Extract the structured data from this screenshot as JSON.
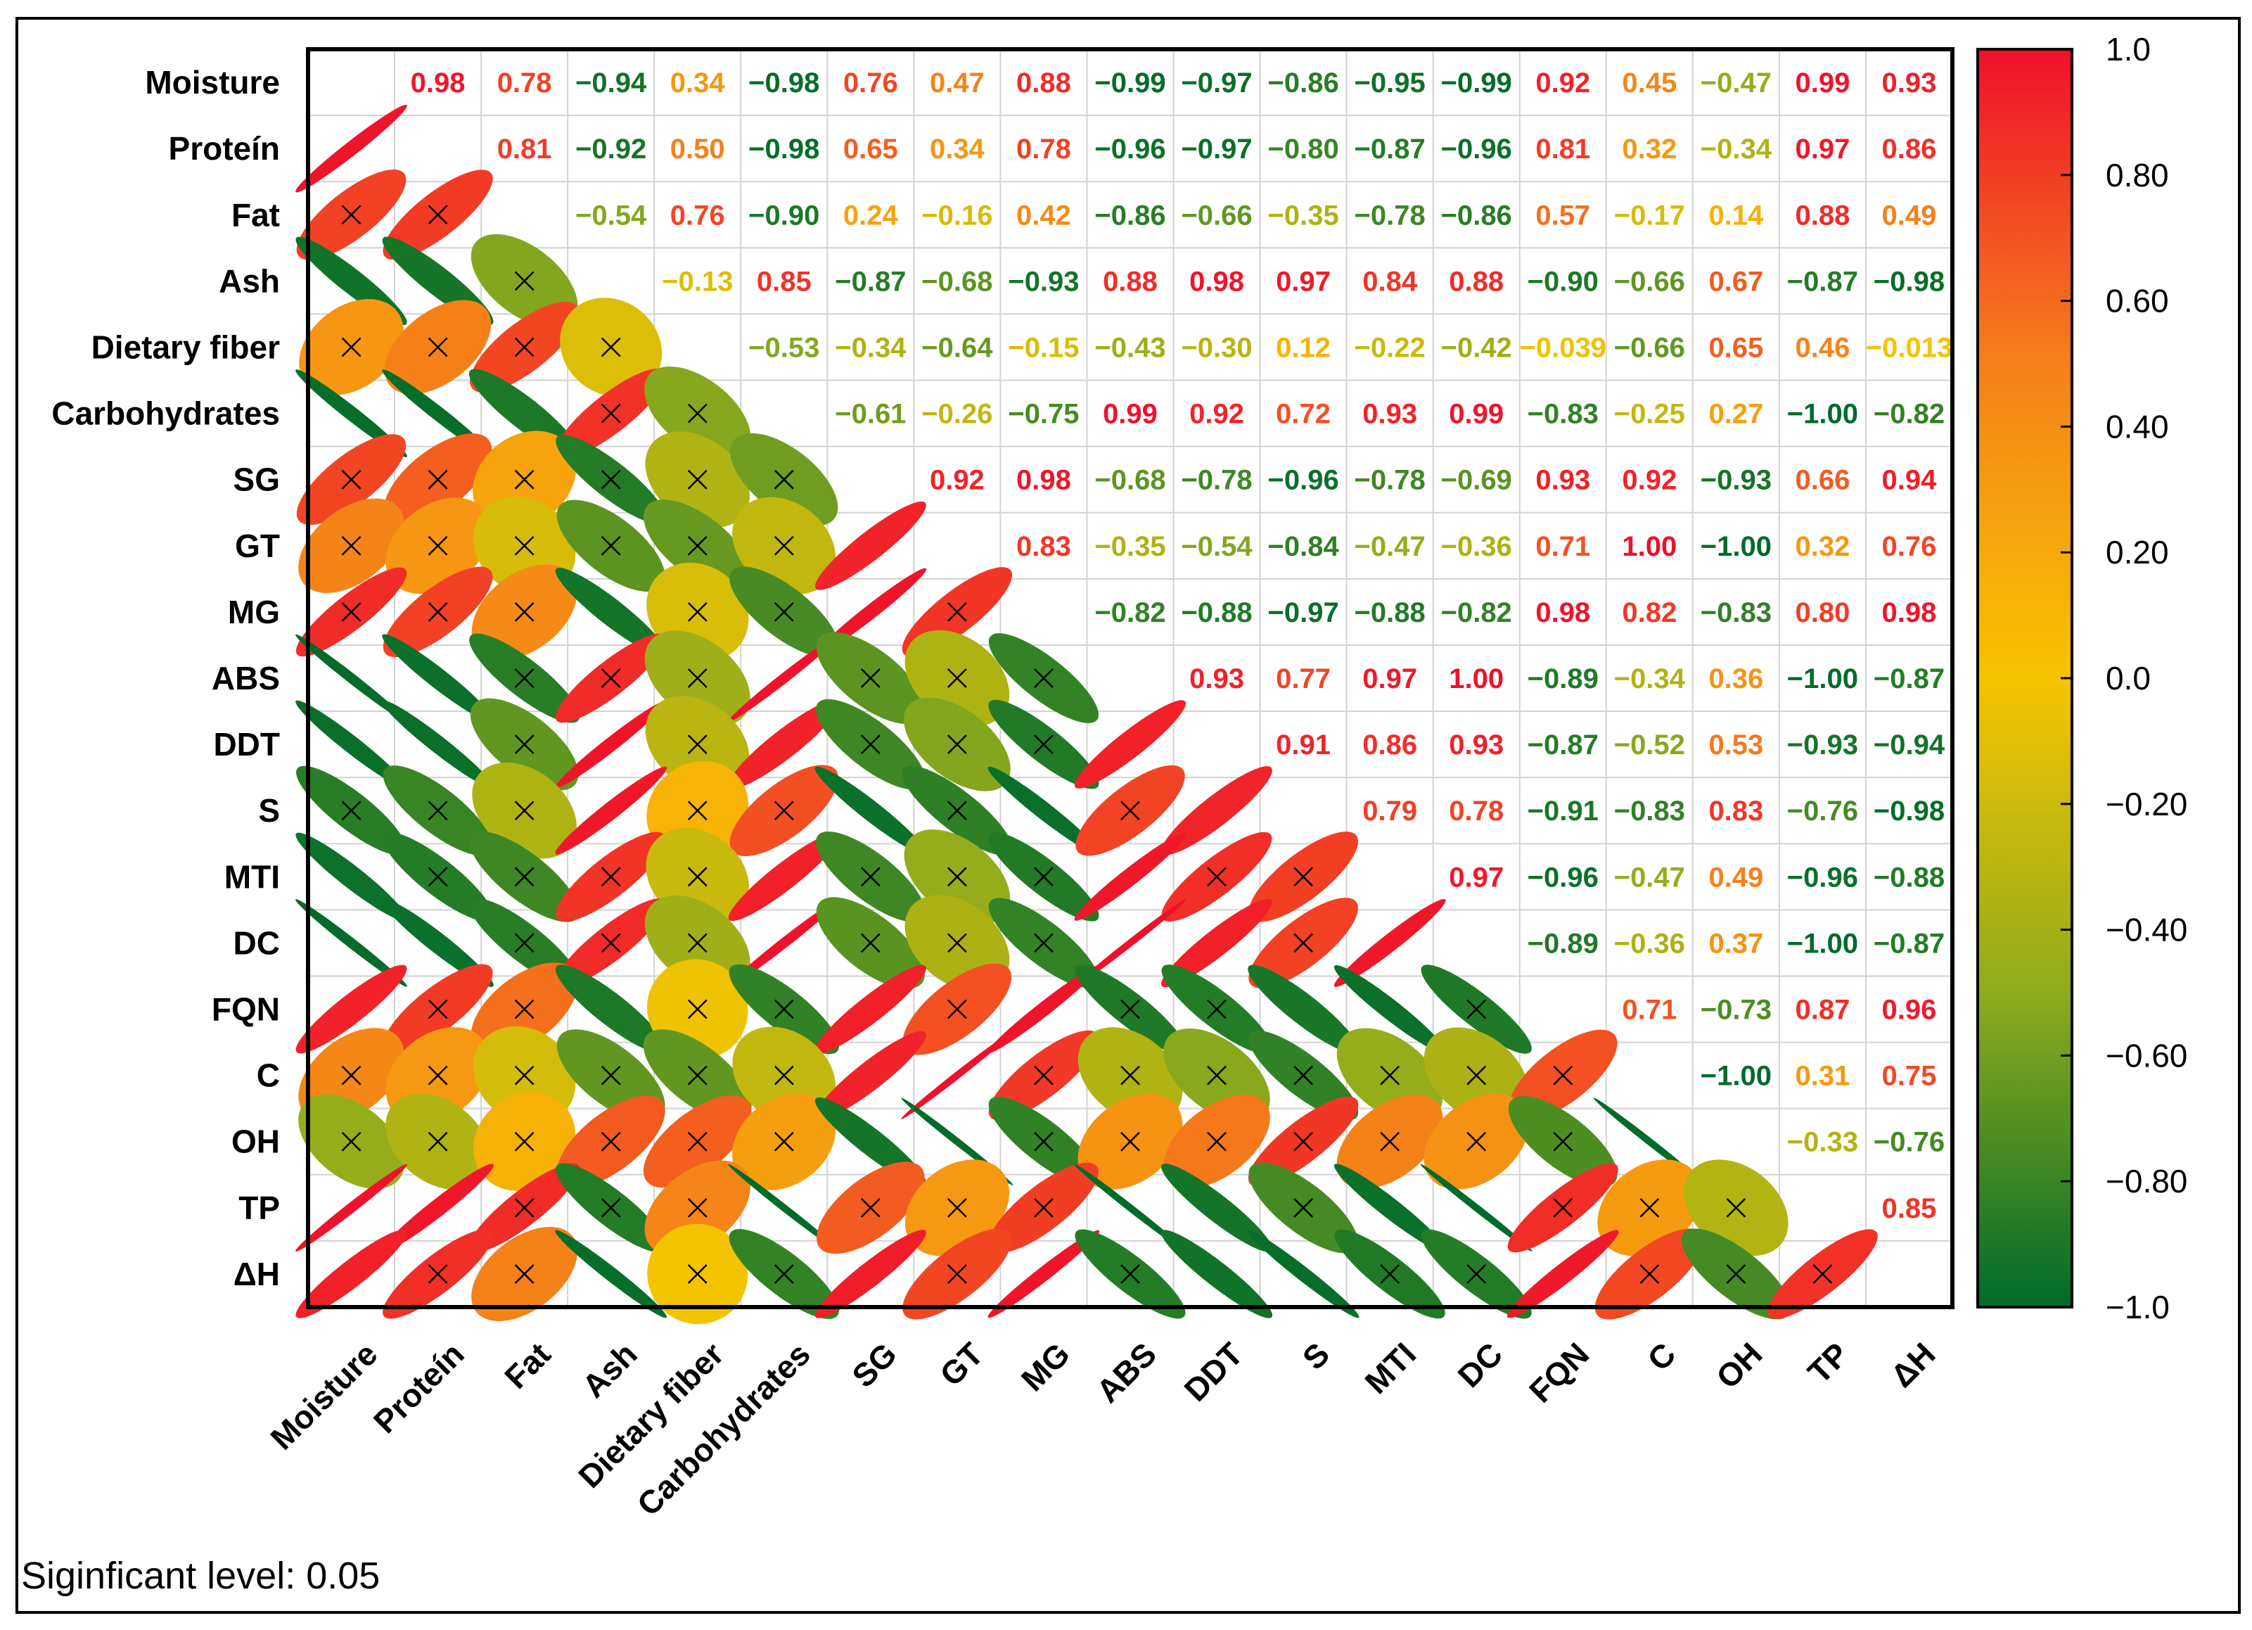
{
  "chart_data": {
    "type": "heatmap",
    "variables": [
      "Moisture",
      "Proteín",
      "Fat",
      "Ash",
      "Dietary fiber",
      "Carbohydrates",
      "SG",
      "GT",
      "MG",
      "ABS",
      "DDT",
      "S",
      "MTI",
      "DC",
      "FQN",
      "C",
      "OH",
      "TP",
      "ΔH"
    ],
    "matrix_labels": [
      [
        "",
        "0.98",
        "0.78",
        "−0.94",
        "0.34",
        "−0.98",
        "0.76",
        "0.47",
        "0.88",
        "−0.99",
        "−0.97",
        "−0.86",
        "−0.95",
        "−0.99",
        "0.92",
        "0.45",
        "−0.47",
        "0.99",
        "0.93"
      ],
      [
        "0.98",
        "",
        "0.81",
        "−0.92",
        "0.50",
        "−0.98",
        "0.65",
        "0.34",
        "0.78",
        "−0.96",
        "−0.97",
        "−0.80",
        "−0.87",
        "−0.96",
        "0.81",
        "0.32",
        "−0.34",
        "0.97",
        "0.86"
      ],
      [
        "0.78",
        "0.81",
        "",
        "−0.54",
        "0.76",
        "−0.90",
        "0.24",
        "−0.16",
        "0.42",
        "−0.86",
        "−0.66",
        "−0.35",
        "−0.78",
        "−0.86",
        "0.57",
        "−0.17",
        "0.14",
        "0.88",
        "0.49"
      ],
      [
        "−0.94",
        "−0.92",
        "−0.54",
        "",
        "−0.13",
        "0.85",
        "−0.87",
        "−0.68",
        "−0.93",
        "0.88",
        "0.98",
        "0.97",
        "0.84",
        "0.88",
        "−0.90",
        "−0.66",
        "0.67",
        "−0.87",
        "−0.98"
      ],
      [
        "0.34",
        "0.50",
        "0.76",
        "−0.13",
        "",
        "−0.53",
        "−0.34",
        "−0.64",
        "−0.15",
        "−0.43",
        "−0.30",
        "0.12",
        "−0.22",
        "−0.42",
        "−0.039",
        "−0.66",
        "0.65",
        "0.46",
        "−0.013"
      ],
      [
        "−0.98",
        "−0.98",
        "−0.90",
        "0.85",
        "−0.53",
        "",
        "−0.61",
        "−0.26",
        "−0.75",
        "0.99",
        "0.92",
        "0.72",
        "0.93",
        "0.99",
        "−0.83",
        "−0.25",
        "0.27",
        "−1.00",
        "−0.82"
      ],
      [
        "0.76",
        "0.65",
        "0.24",
        "−0.87",
        "−0.34",
        "−0.61",
        "",
        "0.92",
        "0.98",
        "−0.68",
        "−0.78",
        "−0.96",
        "−0.78",
        "−0.69",
        "0.93",
        "0.92",
        "−0.93",
        "0.66",
        "0.94"
      ],
      [
        "0.47",
        "0.34",
        "−0.16",
        "−0.68",
        "−0.64",
        "−0.26",
        "0.92",
        "",
        "0.83",
        "−0.35",
        "−0.54",
        "−0.84",
        "−0.47",
        "−0.36",
        "0.71",
        "1.00",
        "−1.00",
        "0.32",
        "0.76"
      ],
      [
        "0.88",
        "0.78",
        "0.42",
        "−0.93",
        "−0.15",
        "−0.75",
        "0.98",
        "0.83",
        "",
        "−0.82",
        "−0.88",
        "−0.97",
        "−0.88",
        "−0.82",
        "0.98",
        "0.82",
        "−0.83",
        "0.80",
        "0.98"
      ],
      [
        "−0.99",
        "−0.96",
        "−0.86",
        "0.88",
        "−0.43",
        "0.99",
        "−0.68",
        "−0.35",
        "−0.82",
        "",
        "0.93",
        "0.77",
        "0.97",
        "1.00",
        "−0.89",
        "−0.34",
        "0.36",
        "−1.00",
        "−0.87"
      ],
      [
        "−0.97",
        "−0.97",
        "−0.66",
        "0.98",
        "−0.30",
        "0.92",
        "−0.78",
        "−0.54",
        "−0.88",
        "0.93",
        "",
        "0.91",
        "0.86",
        "0.93",
        "−0.87",
        "−0.52",
        "0.53",
        "−0.93",
        "−0.94"
      ],
      [
        "−0.86",
        "−0.80",
        "−0.35",
        "0.97",
        "0.12",
        "0.72",
        "−0.96",
        "−0.84",
        "−0.97",
        "0.77",
        "0.91",
        "",
        "0.79",
        "0.78",
        "−0.91",
        "−0.83",
        "0.83",
        "−0.76",
        "−0.98"
      ],
      [
        "−0.95",
        "−0.87",
        "−0.78",
        "0.84",
        "−0.22",
        "0.93",
        "−0.78",
        "−0.47",
        "−0.88",
        "0.97",
        "0.86",
        "0.79",
        "",
        "0.97",
        "−0.96",
        "−0.47",
        "0.49",
        "−0.96",
        "−0.88"
      ],
      [
        "−0.99",
        "−0.96",
        "−0.86",
        "0.88",
        "−0.42",
        "0.99",
        "−0.69",
        "−0.36",
        "−0.82",
        "1.00",
        "0.93",
        "0.78",
        "0.97",
        "",
        "−0.89",
        "−0.36",
        "0.37",
        "−1.00",
        "−0.87"
      ],
      [
        "0.92",
        "0.81",
        "0.57",
        "−0.90",
        "−0.039",
        "−0.83",
        "0.93",
        "0.71",
        "0.98",
        "−0.89",
        "−0.87",
        "−0.91",
        "−0.96",
        "−0.89",
        "",
        "0.71",
        "−0.73",
        "0.87",
        "0.96"
      ],
      [
        "0.45",
        "0.32",
        "−0.17",
        "−0.66",
        "−0.66",
        "−0.25",
        "0.92",
        "1.00",
        "0.82",
        "−0.34",
        "−0.52",
        "−0.83",
        "−0.47",
        "−0.36",
        "0.71",
        "",
        "−1.00",
        "0.31",
        "0.75"
      ],
      [
        "−0.47",
        "−0.34",
        "0.14",
        "0.67",
        "0.65",
        "0.27",
        "−0.93",
        "−1.00",
        "−0.83",
        "0.36",
        "0.53",
        "0.83",
        "0.49",
        "0.37",
        "−0.73",
        "−1.00",
        "",
        "−0.33",
        "−0.76"
      ],
      [
        "0.99",
        "0.97",
        "0.88",
        "−0.87",
        "0.46",
        "−1.00",
        "0.66",
        "0.32",
        "0.80",
        "−1.00",
        "−0.93",
        "−0.76",
        "−0.96",
        "−1.00",
        "0.87",
        "0.31",
        "−0.33",
        "",
        "0.85"
      ],
      [
        "0.93",
        "0.86",
        "0.49",
        "−0.98",
        "−0.013",
        "−0.82",
        "0.94",
        "0.76",
        "0.98",
        "−0.87",
        "−0.94",
        "−0.98",
        "−0.88",
        "−0.87",
        "0.96",
        "0.75",
        "−0.76",
        "0.85",
        ""
      ]
    ],
    "not_significant_marker": "×",
    "colorbar": {
      "min": -1.0,
      "max": 1.0,
      "tick_labels": [
        "1.0",
        "0.80",
        "0.60",
        "0.40",
        "0.20",
        "0.0",
        "−0.20",
        "−0.40",
        "−0.60",
        "−0.80",
        "−1.0"
      ],
      "colors": [
        "#006b2a",
        "#8fab1d",
        "#f7c400",
        "#f5801a",
        "#f0102c"
      ]
    },
    "lower_triangle": "ellipses",
    "upper_triangle": "coefficients",
    "grid": true,
    "legend_placement": "right",
    "footnote": "Siginficant level: 0.05"
  }
}
